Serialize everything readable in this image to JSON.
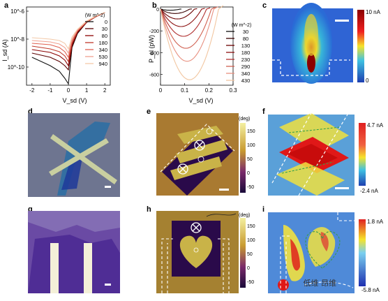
{
  "panel_labels": {
    "a": "a",
    "b": "b",
    "c": "c",
    "d": "d",
    "e": "e",
    "f": "f",
    "g": "g",
    "h": "h",
    "i": "i"
  },
  "chart_data": [
    {
      "type": "line",
      "panel": "a",
      "ylabel": "I_sd (A)",
      "xlabel": "V_sd (V)",
      "x_ticks": [
        "-2",
        "-1",
        "0",
        "1",
        "2"
      ],
      "y_ticks": [
        "10^-6",
        "10^-8",
        "10^-10"
      ],
      "xlim": [
        -2.3,
        2.3
      ],
      "ylim_log10": [
        -11.3,
        -5.7
      ],
      "y_scale": "log",
      "legend_title": "(W m^-2)",
      "legend": [
        "0",
        "30",
        "80",
        "180",
        "340",
        "530",
        "940"
      ],
      "colors": [
        "#111111",
        "#5a0000",
        "#8b0000",
        "#c0392b",
        "#e06050",
        "#f0a090",
        "#f3c9a8"
      ],
      "series": [
        {
          "name": "0",
          "x": [
            -2,
            -1.5,
            -1,
            -0.5,
            -0.2,
            0,
            0.2,
            0.5,
            1,
            1.5,
            2
          ],
          "y_log10": [
            -9.3,
            -9.6,
            -9.9,
            -10.3,
            -10.8,
            -11.2,
            -8.6,
            -7.6,
            -6.8,
            -6.4,
            -6.1
          ]
        },
        {
          "name": "30",
          "x": [
            -2,
            -1.5,
            -1,
            -0.5,
            -0.2,
            0,
            0.2,
            0.5,
            1,
            1.5,
            2
          ],
          "y_log10": [
            -9.0,
            -9.15,
            -9.3,
            -9.6,
            -9.9,
            -10.2,
            -8.5,
            -7.55,
            -6.8,
            -6.4,
            -6.1
          ]
        },
        {
          "name": "80",
          "x": [
            -2,
            -1.5,
            -1,
            -0.5,
            -0.2,
            0,
            0.2,
            0.5,
            1,
            1.5,
            2
          ],
          "y_log10": [
            -8.75,
            -8.85,
            -8.95,
            -9.2,
            -9.5,
            -9.9,
            -8.4,
            -7.5,
            -6.8,
            -6.4,
            -6.1
          ]
        },
        {
          "name": "180",
          "x": [
            -2,
            -1.5,
            -1,
            -0.5,
            -0.2,
            0,
            0.2,
            0.5,
            1,
            1.5,
            2
          ],
          "y_log10": [
            -8.5,
            -8.6,
            -8.7,
            -8.9,
            -9.2,
            -9.6,
            -8.3,
            -7.45,
            -6.78,
            -6.4,
            -6.1
          ]
        },
        {
          "name": "340",
          "x": [
            -2,
            -1.5,
            -1,
            -0.5,
            -0.2,
            0,
            0.2,
            0.5,
            1,
            1.5,
            2
          ],
          "y_log10": [
            -8.3,
            -8.35,
            -8.4,
            -8.6,
            -8.9,
            -9.3,
            -8.15,
            -7.4,
            -6.75,
            -6.38,
            -6.1
          ]
        },
        {
          "name": "530",
          "x": [
            -2,
            -1.5,
            -1,
            -0.5,
            -0.2,
            0,
            0.2,
            0.5,
            1,
            1.5,
            2
          ],
          "y_log10": [
            -8.1,
            -8.15,
            -8.2,
            -8.35,
            -8.6,
            -9.0,
            -8.0,
            -7.35,
            -6.73,
            -6.37,
            -6.1
          ]
        },
        {
          "name": "940",
          "x": [
            -2,
            -1.5,
            -1,
            -0.5,
            -0.2,
            0,
            0.2,
            0.5,
            1,
            1.5,
            2
          ],
          "y_log10": [
            -7.9,
            -7.95,
            -8.0,
            -8.1,
            -8.3,
            -8.7,
            -7.85,
            -7.3,
            -6.7,
            -6.35,
            -6.08
          ]
        }
      ]
    },
    {
      "type": "line",
      "panel": "b",
      "ylabel": "P_el (pW)",
      "xlabel": "V_sd (V)",
      "x_ticks": [
        "0",
        "0.1",
        "0.2",
        "0.3"
      ],
      "y_ticks": [
        "0",
        "-200",
        "-400",
        "-600"
      ],
      "xlim": [
        0,
        0.3
      ],
      "ylim": [
        -700,
        20
      ],
      "legend_title": "(W m^-2)",
      "legend": [
        "30",
        "80",
        "130",
        "180",
        "230",
        "290",
        "340",
        "430"
      ],
      "colors": [
        "#111111",
        "#3a0000",
        "#6b0000",
        "#8b1010",
        "#b03030",
        "#d06050",
        "#e89080",
        "#f2c6a0"
      ],
      "series": [
        {
          "name": "30",
          "x0": 0.08,
          "depth": -10
        },
        {
          "name": "80",
          "x0": 0.12,
          "depth": -40
        },
        {
          "name": "130",
          "x0": 0.14,
          "depth": -90
        },
        {
          "name": "180",
          "x0": 0.17,
          "depth": -160
        },
        {
          "name": "230",
          "x0": 0.19,
          "depth": -250
        },
        {
          "name": "290",
          "x0": 0.21,
          "depth": -360
        },
        {
          "name": "340",
          "x0": 0.22,
          "depth": -480
        },
        {
          "name": "430",
          "x0": 0.24,
          "depth": -650
        }
      ]
    }
  ],
  "colorbars": {
    "c": {
      "max": "10 nA",
      "min": "0"
    },
    "e": {
      "ticks": [
        "150",
        "100",
        "50",
        "0",
        "-50"
      ],
      "unit": "(deg)"
    },
    "f": {
      "max": "4.7 nA",
      "min": "-2.4 nA"
    },
    "h": {
      "ticks": [
        "150",
        "100",
        "50",
        "0",
        "-50"
      ],
      "unit": "(deg)"
    },
    "i": {
      "max": "1.8 nA",
      "min": "-5.8 nA"
    }
  },
  "watermark": "低维 昂维",
  "colors": {
    "accent_red": "#c0392b",
    "purple": "#3a0a5a",
    "gold": "#c8b040"
  }
}
